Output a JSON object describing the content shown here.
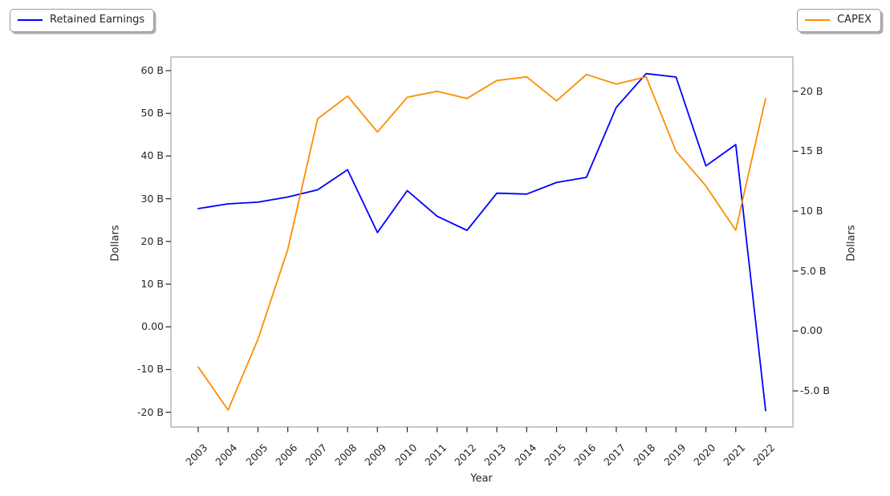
{
  "legends": [
    {
      "label": "Retained Earnings",
      "color": "#0000ff",
      "position": "top-left"
    },
    {
      "label": "CAPEX",
      "color": "#ff8c00",
      "position": "top-right"
    }
  ],
  "chart_data": {
    "type": "line",
    "title": "",
    "xlabel": "Year",
    "x": [
      2003,
      2004,
      2005,
      2006,
      2007,
      2008,
      2009,
      2010,
      2011,
      2012,
      2013,
      2014,
      2015,
      2016,
      2017,
      2018,
      2019,
      2020,
      2021,
      2022
    ],
    "x_tick_labels": [
      "2003",
      "2004",
      "2005",
      "2006",
      "2007",
      "2008",
      "2009",
      "2010",
      "2011",
      "2012",
      "2013",
      "2014",
      "2015",
      "2016",
      "2017",
      "2018",
      "2019",
      "2020",
      "2021",
      "2022"
    ],
    "series": [
      {
        "name": "Retained Earnings",
        "axis": "left",
        "color": "#0000ff",
        "units": "billions of dollars",
        "values": [
          27.7,
          28.8,
          29.2,
          30.4,
          32.1,
          36.8,
          22.1,
          31.9,
          25.9,
          22.6,
          31.3,
          31.1,
          33.8,
          35.0,
          51.4,
          59.3,
          58.5,
          37.7,
          42.7,
          -19.6
        ]
      },
      {
        "name": "CAPEX",
        "axis": "right",
        "color": "#ff8c00",
        "units": "billions of dollars",
        "values": [
          -3.0,
          -6.6,
          -0.7,
          6.8,
          17.7,
          19.6,
          16.6,
          19.5,
          20.0,
          19.4,
          20.9,
          21.2,
          19.2,
          21.4,
          20.6,
          21.2,
          15.0,
          12.1,
          8.4,
          19.4
        ]
      }
    ],
    "left_axis": {
      "title": "Dollars",
      "range": [
        -23.45,
        63.2
      ],
      "ticks": [
        {
          "v": 60,
          "label": "60 B"
        },
        {
          "v": 50,
          "label": "50 B"
        },
        {
          "v": 40,
          "label": "40 B"
        },
        {
          "v": 30,
          "label": "30 B"
        },
        {
          "v": 20,
          "label": "20 B"
        },
        {
          "v": 10,
          "label": "10 B"
        },
        {
          "v": 0,
          "label": "0.00"
        },
        {
          "v": -10,
          "label": "-10 B"
        },
        {
          "v": -20,
          "label": "-20 B"
        }
      ]
    },
    "right_axis": {
      "title": "Dollars",
      "range": [
        -8.01,
        22.86
      ],
      "ticks": [
        {
          "v": 20,
          "label": "20 B"
        },
        {
          "v": 15,
          "label": "15 B"
        },
        {
          "v": 10,
          "label": "10 B"
        },
        {
          "v": 5,
          "label": "5.0 B"
        },
        {
          "v": 0,
          "label": "0.00"
        },
        {
          "v": -5,
          "label": "-5.0 B"
        }
      ]
    },
    "grid": false,
    "legend_position": "outside-top",
    "frame_color": "#c9c9c9"
  }
}
